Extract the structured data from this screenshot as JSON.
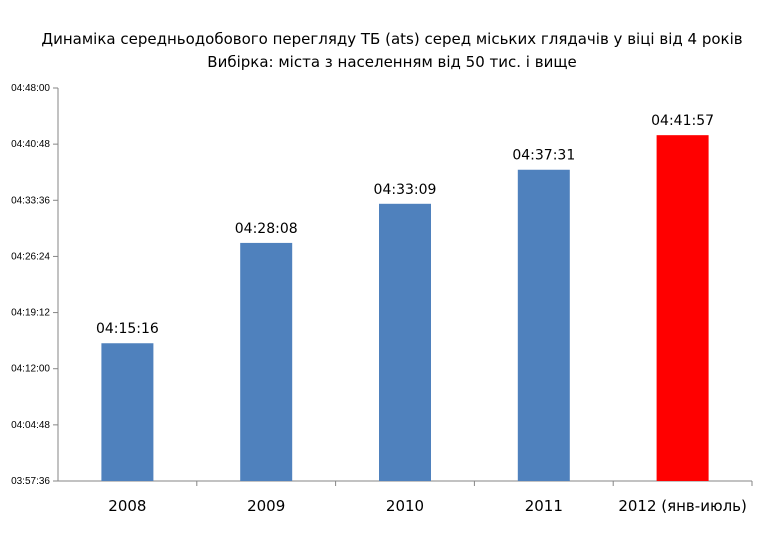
{
  "chart_data": {
    "type": "bar",
    "title": "Динаміка середньодобового перегляду ТБ (ats) серед міських глядачів  у віці від 4 років",
    "subtitle": "Вибірка: міста з населенням від 50 тис. і вище",
    "categories": [
      "2008",
      "2009",
      "2010",
      "2011",
      "2012 (янв-июль)"
    ],
    "values": [
      "04:15:16",
      "04:28:08",
      "04:33:09",
      "04:37:31",
      "04:41:57"
    ],
    "data_labels": [
      "04:15:16",
      "04:28:08",
      "04:33:09",
      "04:37:31",
      "04:41:57"
    ],
    "colors": [
      "#4f81bd",
      "#4f81bd",
      "#4f81bd",
      "#4f81bd",
      "#ff0000"
    ],
    "ylim": [
      "03:57:36",
      "04:48:00"
    ],
    "yticks": [
      "03:57:36",
      "04:04:48",
      "04:12:00",
      "04:19:12",
      "04:26:24",
      "04:33:36",
      "04:40:48",
      "04:48:00"
    ],
    "grid": false,
    "legend": "none"
  }
}
